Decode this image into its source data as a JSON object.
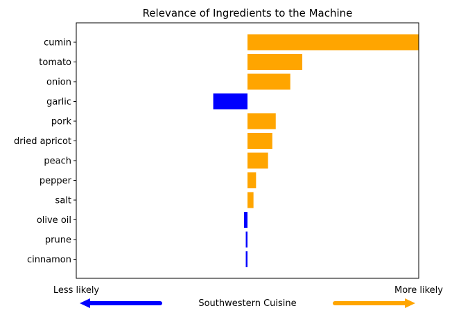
{
  "chart_data": {
    "type": "bar",
    "orientation": "horizontal",
    "title": "Relevance of Ingredients to the Machine",
    "categories": [
      "cumin",
      "tomato",
      "onion",
      "garlic",
      "pork",
      "dried apricot",
      "peach",
      "pepper",
      "salt",
      "olive oil",
      "prune",
      "cinnamon"
    ],
    "values": [
      1.0,
      0.32,
      0.25,
      -0.2,
      0.165,
      0.145,
      0.12,
      0.05,
      0.035,
      -0.02,
      -0.01,
      -0.01
    ],
    "xlim": [
      -1.0,
      1.0
    ],
    "xlabel_left": "Less likely",
    "xlabel_right": "More likely",
    "xlabel": "Southwestern Cuisine",
    "positive_color": "#FFA500",
    "negative_color": "#0000FF",
    "grid": false,
    "legend": "none"
  }
}
